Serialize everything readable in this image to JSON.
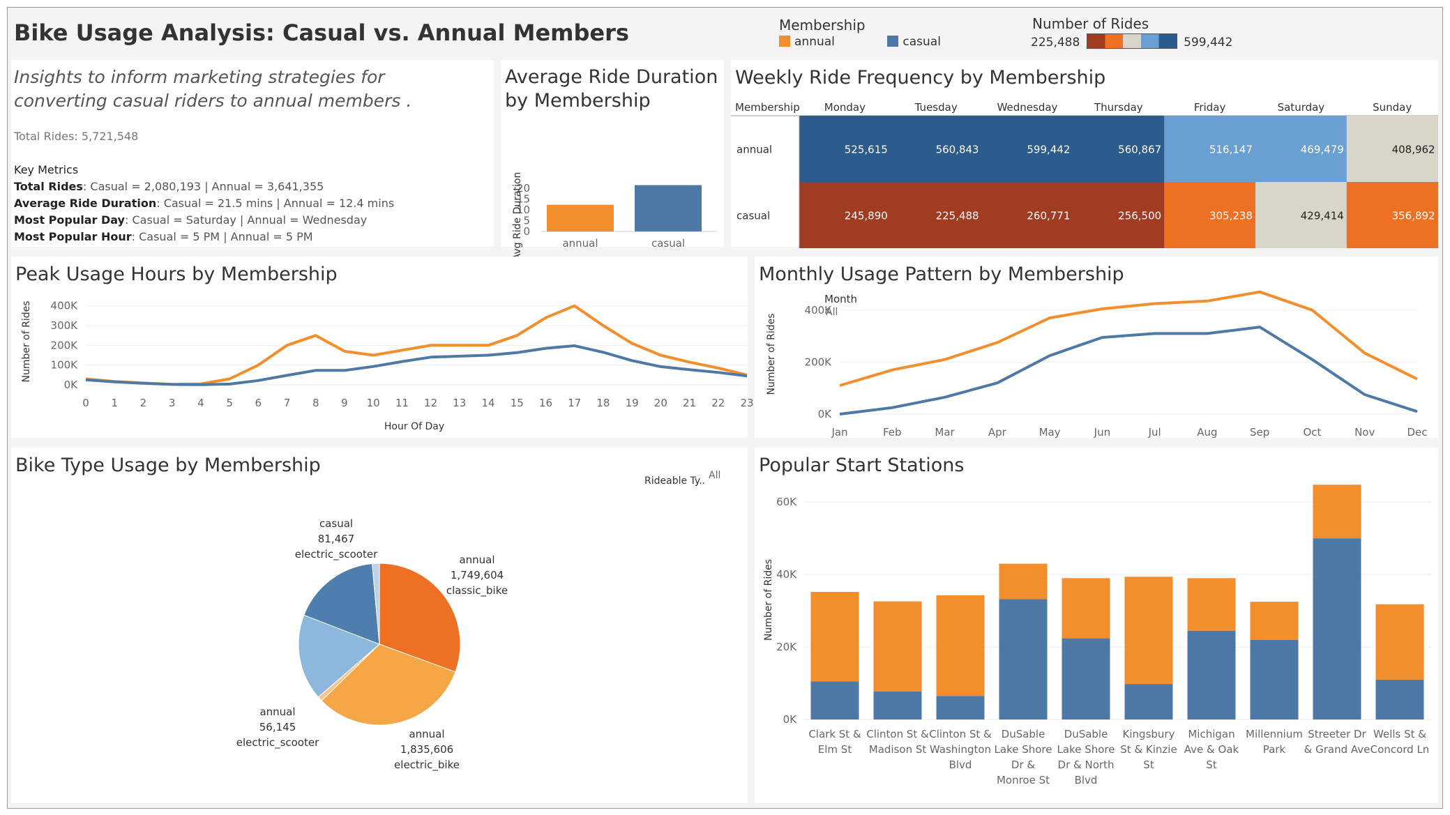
{
  "header": {
    "title": "Bike Usage Analysis: Casual vs. Annual Members",
    "legend_title": "Membership",
    "legend_items": [
      {
        "label": "annual",
        "color": "#f28e2b"
      },
      {
        "label": "casual",
        "color": "#4e79a7"
      }
    ],
    "scale_title": "Number of Rides",
    "scale_min": "225,488",
    "scale_max": "599,442"
  },
  "insights": {
    "subtitle": "Insights to inform marketing strategies for converting casual riders to annual members .",
    "total": "Total Rides: 5,721,548",
    "metrics_title": "Key Metrics",
    "metrics": [
      {
        "key": "Total Rides",
        "value": ": Casual = 2,080,193 | Annual = 3,641,355"
      },
      {
        "key": "Average Ride Duration",
        "value": ": Casual = 21.5 mins | Annual = 12.4 mins"
      },
      {
        "key": "Most Popular Day",
        "value": ": Casual = Saturday | Annual = Wednesday"
      },
      {
        "key": "Most Popular Hour",
        "value": ": Casual = 5 PM | Annual = 5 PM"
      }
    ]
  },
  "chart_data": [
    {
      "type": "bar",
      "title": "Average Ride Duration by Membership",
      "ylabel": "Avg Ride Duration",
      "categories": [
        "annual",
        "casual"
      ],
      "values": [
        12.4,
        21.5
      ],
      "colors": [
        "#f28e2b",
        "#4e79a7"
      ],
      "ylim": [
        0,
        22
      ],
      "yticks": [
        0,
        5,
        10,
        15,
        20
      ]
    },
    {
      "type": "heatmap",
      "title": "Weekly Ride Frequency by Membership",
      "row_header": "Membership",
      "columns": [
        "Monday",
        "Tuesday",
        "Wednesday",
        "Thursday",
        "Friday",
        "Saturday",
        "Sunday"
      ],
      "rows": [
        {
          "name": "annual",
          "values": [
            525615,
            560843,
            599442,
            560867,
            516147,
            469479,
            408962
          ],
          "labels": [
            "525,615",
            "560,843",
            "599,442",
            "560,867",
            "516,147",
            "469,479",
            "408,962"
          ],
          "colors": [
            "#2c5c8c",
            "#2c5c8c",
            "#2c5c8c",
            "#2c5c8c",
            "#6a9fd4",
            "#6a9fd4",
            "#d9d5c9"
          ]
        },
        {
          "name": "casual",
          "values": [
            245890,
            225488,
            260771,
            256500,
            305238,
            429414,
            356892
          ],
          "labels": [
            "245,890",
            "225,488",
            "260,771",
            "256,500",
            "305,238",
            "429,414",
            "356,892"
          ],
          "colors": [
            "#a03c22",
            "#a03c22",
            "#a03c22",
            "#a03c22",
            "#ee7023",
            "#d9d5c9",
            "#ee7023"
          ]
        }
      ]
    },
    {
      "type": "line",
      "title": "Peak Usage Hours by Membership",
      "xlabel": "Hour Of Day",
      "ylabel": "Number of Rides",
      "x": [
        0,
        1,
        2,
        3,
        4,
        5,
        6,
        7,
        8,
        9,
        10,
        11,
        12,
        13,
        14,
        15,
        16,
        17,
        18,
        19,
        20,
        21,
        22,
        23
      ],
      "ylim": [
        0,
        420000
      ],
      "yticks": [
        0,
        100000,
        200000,
        300000,
        400000
      ],
      "ytick_labels": [
        "0K",
        "100K",
        "200K",
        "300K",
        "400K"
      ],
      "series": [
        {
          "name": "annual",
          "color": "#f28e2b",
          "values": [
            30000,
            17000,
            9000,
            3000,
            5000,
            30000,
            100000,
            200000,
            250000,
            170000,
            150000,
            175000,
            200000,
            200000,
            200000,
            250000,
            340000,
            400000,
            300000,
            210000,
            150000,
            115000,
            85000,
            50000
          ]
        },
        {
          "name": "casual",
          "color": "#4e79a7",
          "values": [
            25000,
            15000,
            8000,
            2000,
            1000,
            4000,
            22000,
            48000,
            73000,
            73000,
            93000,
            118000,
            140000,
            145000,
            150000,
            163000,
            185000,
            198000,
            165000,
            123000,
            92000,
            77000,
            63000,
            45000
          ]
        }
      ]
    },
    {
      "type": "line",
      "title": "Monthly Usage Pattern by Membership",
      "ylabel": "Number of Rides",
      "filter_label": "Month",
      "filter_value": "All",
      "x": [
        "Jan",
        "Feb",
        "Mar",
        "Apr",
        "May",
        "Jun",
        "Jul",
        "Aug",
        "Sep",
        "Oct",
        "Nov",
        "Dec"
      ],
      "ylim": [
        0,
        480000
      ],
      "yticks": [
        0,
        200000,
        400000
      ],
      "ytick_labels": [
        "0K",
        "200K",
        "400K"
      ],
      "series": [
        {
          "name": "annual",
          "color": "#f28e2b",
          "values": [
            110000,
            170000,
            210000,
            275000,
            370000,
            405000,
            425000,
            435000,
            470000,
            400000,
            235000,
            135000
          ]
        },
        {
          "name": "casual",
          "color": "#4e79a7",
          "values": [
            0,
            25000,
            65000,
            120000,
            225000,
            295000,
            310000,
            310000,
            335000,
            210000,
            75000,
            10000
          ]
        }
      ]
    },
    {
      "type": "pie",
      "title": "Bike Type Usage by Membership",
      "filter_label": "Rideable Ty..",
      "filter_value": "All",
      "slices": [
        {
          "membership": "annual",
          "bike": "classic_bike",
          "value": 1749604,
          "label": "1,749,604",
          "color": "#ee7023"
        },
        {
          "membership": "annual",
          "bike": "electric_bike",
          "value": 1835606,
          "label": "1,835,606",
          "color": "#f5a646"
        },
        {
          "membership": "annual",
          "bike": "electric_scooter",
          "value": 56145,
          "label": "56,145",
          "color": "#fbc68b"
        },
        {
          "membership": "casual",
          "bike": "electric_bike",
          "value": 985000,
          "label": "",
          "color": "#8cb8dd"
        },
        {
          "membership": "casual",
          "bike": "classic_bike",
          "value": 1013726,
          "label": "",
          "color": "#4e7eae"
        },
        {
          "membership": "casual",
          "bike": "electric_scooter",
          "value": 81467,
          "label": "81,467",
          "color": "#b9d4ea"
        }
      ]
    },
    {
      "type": "bar",
      "stacked": true,
      "title": "Popular Start Stations",
      "ylabel": "Number of Rides",
      "categories": [
        "Clark St & Elm St",
        "Clinton St & Madison St",
        "Clinton St & Washington Blvd",
        "DuSable Lake Shore Dr & Monroe St",
        "DuSable Lake Shore Dr & North Blvd",
        "Kingsbury St & Kinzie St",
        "Michigan Ave & Oak St",
        "Millennium Park",
        "Streeter Dr & Grand Ave",
        "Wells St & Concord Ln"
      ],
      "category_lines": [
        [
          "Clark St &",
          "Elm St"
        ],
        [
          "Clinton St &",
          "Madison St"
        ],
        [
          "Clinton St &",
          "Washington",
          "Blvd"
        ],
        [
          "DuSable",
          "Lake Shore",
          "Dr &",
          "Monroe St"
        ],
        [
          "DuSable",
          "Lake Shore",
          "Dr & North",
          "Blvd"
        ],
        [
          "Kingsbury",
          "St & Kinzie",
          "St"
        ],
        [
          "Michigan",
          "Ave & Oak",
          "St"
        ],
        [
          "Millennium",
          "Park"
        ],
        [
          "Streeter Dr",
          "& Grand Ave"
        ],
        [
          "Wells St &",
          "Concord Ln"
        ]
      ],
      "ylim": [
        0,
        66000
      ],
      "yticks": [
        0,
        20000,
        40000,
        60000
      ],
      "ytick_labels": [
        "0K",
        "20K",
        "40K",
        "60K"
      ],
      "series": [
        {
          "name": "casual",
          "color": "#4e79a7",
          "values": [
            10500,
            7700,
            6500,
            33200,
            22400,
            9800,
            24500,
            22000,
            50000,
            11000
          ]
        },
        {
          "name": "annual",
          "color": "#f28e2b",
          "values": [
            24700,
            24900,
            27800,
            9800,
            16600,
            29600,
            14500,
            10500,
            14800,
            20800
          ]
        }
      ]
    }
  ]
}
